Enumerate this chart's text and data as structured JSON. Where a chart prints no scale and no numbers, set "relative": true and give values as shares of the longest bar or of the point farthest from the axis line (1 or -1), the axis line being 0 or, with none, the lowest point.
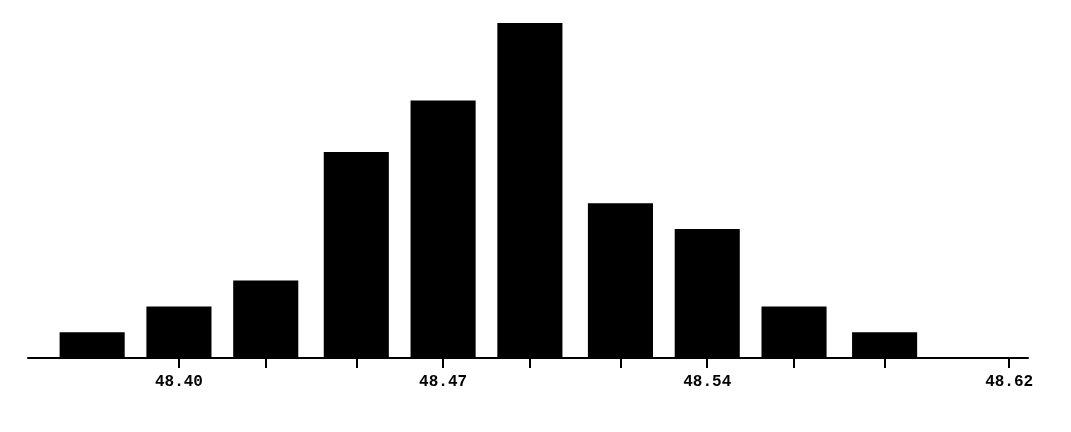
{
  "chart_data": {
    "type": "bar",
    "relative": true,
    "color": "#000000",
    "x": [
      48.377,
      48.4,
      48.423,
      48.447,
      48.47,
      48.493,
      48.517,
      48.54,
      48.563,
      48.587
    ],
    "values": [
      0.077,
      0.154,
      0.231,
      0.615,
      0.769,
      1,
      0.462,
      0.385,
      0.154,
      0.077
    ],
    "xlim": [
      48.36,
      48.625
    ],
    "xticks": [
      {
        "value": 48.4,
        "label": "48.40"
      },
      {
        "value": 48.423,
        "label": null
      },
      {
        "value": 48.447,
        "label": null
      },
      {
        "value": 48.47,
        "label": "48.47"
      },
      {
        "value": 48.493,
        "label": null
      },
      {
        "value": 48.517,
        "label": null
      },
      {
        "value": 48.54,
        "label": "48.54"
      },
      {
        "value": 48.563,
        "label": null
      },
      {
        "value": 48.587,
        "label": null
      },
      {
        "value": 48.62,
        "label": "48.62"
      }
    ],
    "grid": false
  }
}
